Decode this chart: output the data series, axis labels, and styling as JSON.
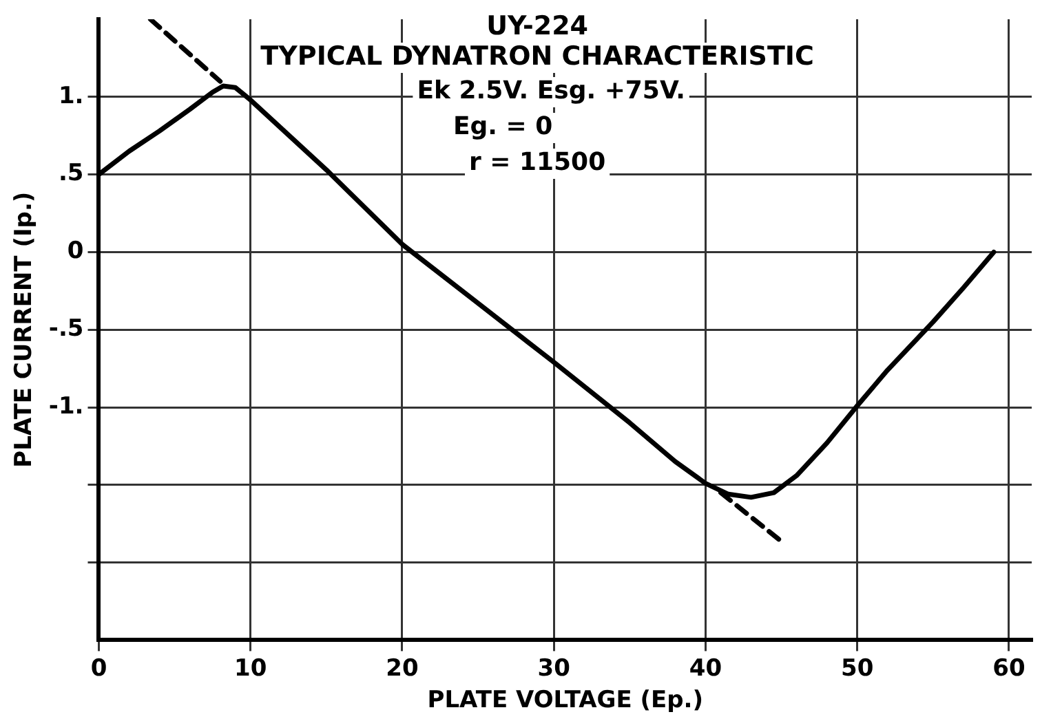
{
  "chart_data": {
    "type": "line",
    "title": "UY-224",
    "subtitle": "TYPICAL DYNATRON CHARACTERISTIC",
    "annotations": [
      "Ek 2.5V. Esg. +75V.",
      "Eg. = 0",
      "r = 11500"
    ],
    "xlabel": "PLATE VOLTAGE (Ep.)",
    "ylabel": "PLATE CURRENT (Ip.)",
    "xlim": [
      0,
      61.5
    ],
    "xticks": [
      0,
      10,
      20,
      30,
      40,
      50,
      60
    ],
    "ylim": [
      -2.5,
      1.5
    ],
    "yticks": [
      {
        "value": 1,
        "label": "1."
      },
      {
        "value": 0.5,
        "label": ".5"
      },
      0,
      {
        "value": -0.5,
        "label": "-.5"
      },
      {
        "value": -1,
        "label": "-1."
      },
      {
        "value": -1.5,
        "label": null
      },
      {
        "value": -2,
        "label": null
      }
    ],
    "grid": true,
    "legend": false,
    "marker": "none",
    "series": [
      {
        "color": "#000000",
        "line_style": "solid",
        "x": [
          0,
          2,
          4,
          6,
          7.5,
          8.2,
          9,
          10,
          15,
          20,
          25,
          30,
          35,
          38,
          40,
          41.5,
          43,
          44.5,
          46,
          48,
          50,
          52,
          55,
          57,
          59
        ],
        "values": [
          0.5,
          0.65,
          0.78,
          0.92,
          1.03,
          1.07,
          1.06,
          0.98,
          0.53,
          0.05,
          -0.33,
          -0.71,
          -1.1,
          -1.35,
          -1.49,
          -1.56,
          -1.58,
          -1.55,
          -1.44,
          -1.23,
          -0.99,
          -0.76,
          -0.45,
          -0.23,
          0
        ]
      },
      {
        "color": "#000000",
        "line_style": "dashed",
        "x": [
          3.4,
          8.0
        ],
        "values": [
          1.5,
          1.1
        ]
      },
      {
        "color": "#000000",
        "line_style": "dashed",
        "x": [
          41,
          45.2
        ],
        "values": [
          -1.55,
          -1.88
        ]
      }
    ]
  }
}
